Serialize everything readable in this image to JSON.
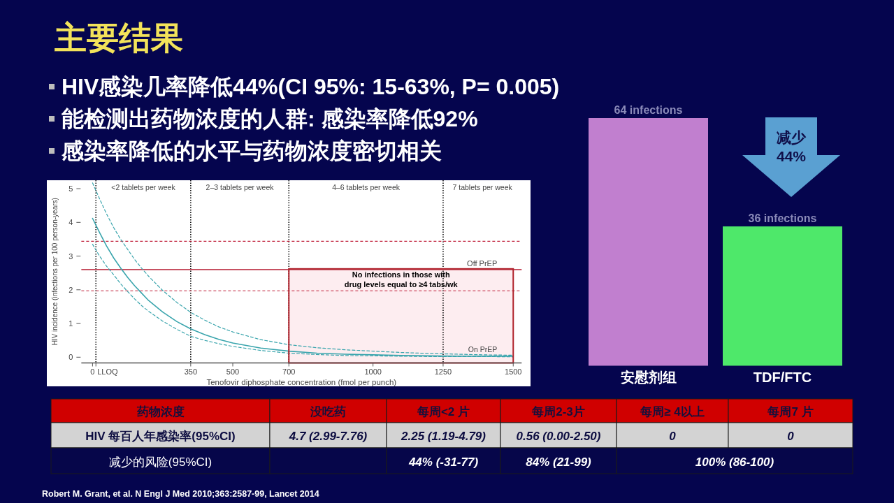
{
  "chart_data": [
    {
      "type": "other",
      "title": "主要结果",
      "annotations": [
        "HIV感染几率降低44%(CI 95%: 15-63%, P= 0.005)",
        "能检测出药物浓度的人群: 感染率降低92%",
        "感染率降低的水平与药物浓度密切相关"
      ]
    },
    {
      "type": "line",
      "xlabel": "Tenofovir diphosphate concentration (fmol per punch)",
      "ylabel": "HIV incidence (infections per 100 person-years)",
      "x": [
        0,
        25,
        50,
        75,
        100,
        125,
        150,
        175,
        200,
        250,
        300,
        350,
        400,
        450,
        500,
        600,
        700,
        800,
        900,
        1000,
        1100,
        1200,
        1300,
        1400,
        1500
      ],
      "series": [
        {
          "color": "#3aa5ad",
          "line_style": "solid",
          "values": [
            4.12,
            3.7,
            3.3,
            2.95,
            2.65,
            2.37,
            2.12,
            1.9,
            1.68,
            1.34,
            1.06,
            0.84,
            0.67,
            0.53,
            0.42,
            0.27,
            0.18,
            0.12,
            0.09,
            0.07,
            0.05,
            0.04,
            0.03,
            0.03,
            0.03
          ]
        },
        {
          "color": "#3aa5ad",
          "line_style": "dashed",
          "values": [
            5.17,
            4.7,
            4.25,
            3.85,
            3.5,
            3.2,
            2.9,
            2.64,
            2.4,
            1.98,
            1.63,
            1.33,
            1.1,
            0.9,
            0.75,
            0.52,
            0.37,
            0.28,
            0.22,
            0.18,
            0.14,
            0.11,
            0.09,
            0.07,
            0.06
          ]
        },
        {
          "color": "#3aa5ad",
          "line_style": "dashed",
          "values": [
            3.35,
            3.0,
            2.7,
            2.45,
            2.18,
            1.95,
            1.73,
            1.53,
            1.36,
            1.07,
            0.83,
            0.62,
            0.5,
            0.4,
            0.32,
            0.2,
            0.12,
            0.08,
            0.05,
            0.04,
            0.03,
            0.02,
            0.02,
            0.02,
            0.01
          ]
        }
      ],
      "xlim": [
        -40,
        1530
      ],
      "ylim": [
        -0.17,
        5.25
      ],
      "xticks": [
        {
          "value": 0,
          "label": "0"
        },
        {
          "value": 12,
          "label": null
        },
        350,
        500,
        700,
        1000,
        1250,
        1500
      ],
      "yticks": [
        0,
        1,
        2,
        3,
        4,
        5
      ],
      "ref_lines": [
        {
          "axis": "x",
          "value": 12,
          "label": "LLOQ",
          "color": "#111111",
          "line_style": "dotted"
        },
        {
          "axis": "x",
          "value": 350,
          "color": "#111111",
          "line_style": "dotted"
        },
        {
          "axis": "x",
          "value": 700,
          "color": "#111111",
          "line_style": "dotted"
        },
        {
          "axis": "x",
          "value": 1250,
          "color": "#111111",
          "line_style": "dotted"
        },
        {
          "axis": "y",
          "value": 3.44,
          "color": "#c0203a",
          "line_style": "dashed"
        },
        {
          "axis": "y",
          "value": 2.6,
          "label": "Off PrEP",
          "color": "#c34557",
          "line_style": "solid"
        },
        {
          "axis": "y",
          "value": 1.97,
          "color": "#c0203a",
          "line_style": "dashed"
        }
      ],
      "bands": [
        {
          "axis": "x",
          "from": 700,
          "to": 1500,
          "label": "No infections in those with drug levels equal to ≥4 tabs/wk",
          "color": "#fdedf0"
        }
      ],
      "annotations": [
        "<2 tablets per week",
        "2–3 tablets per week",
        "4–6 tablets per week",
        "7 tablets per week",
        "On PrEP"
      ]
    },
    {
      "type": "bar",
      "categories": [
        "安慰剂组",
        "TDF/FTC"
      ],
      "values": [
        64,
        36
      ],
      "colors": [
        "#c17fcf",
        "#4ee86a"
      ],
      "value_labels": [
        "64 infections",
        "36 infections"
      ],
      "annotations": [
        "减少 44%"
      ]
    },
    {
      "type": "other",
      "categories": [
        "药物浓度",
        "没吃药",
        "每周<2 片",
        "每周2-3片",
        "每周≥ 4以上",
        "每周7 片"
      ],
      "y_categories": [
        "HIV 每百人年感染率(95%CI)",
        "减少的风险(95%CI)"
      ],
      "cell_labels": [
        [
          "4.7 (2.99-7.76)",
          "2.25 (1.19-4.79)",
          "0.56 (0.00-2.50)",
          "0",
          "0"
        ],
        [
          null,
          "44% (-31-77)",
          "84% (21-99)",
          "100% (86-100)"
        ]
      ],
      "annotations": [
        "Robert M. Grant, et al. N Engl J Med 2010;363:2587-99,  Lancet 2014"
      ]
    }
  ]
}
